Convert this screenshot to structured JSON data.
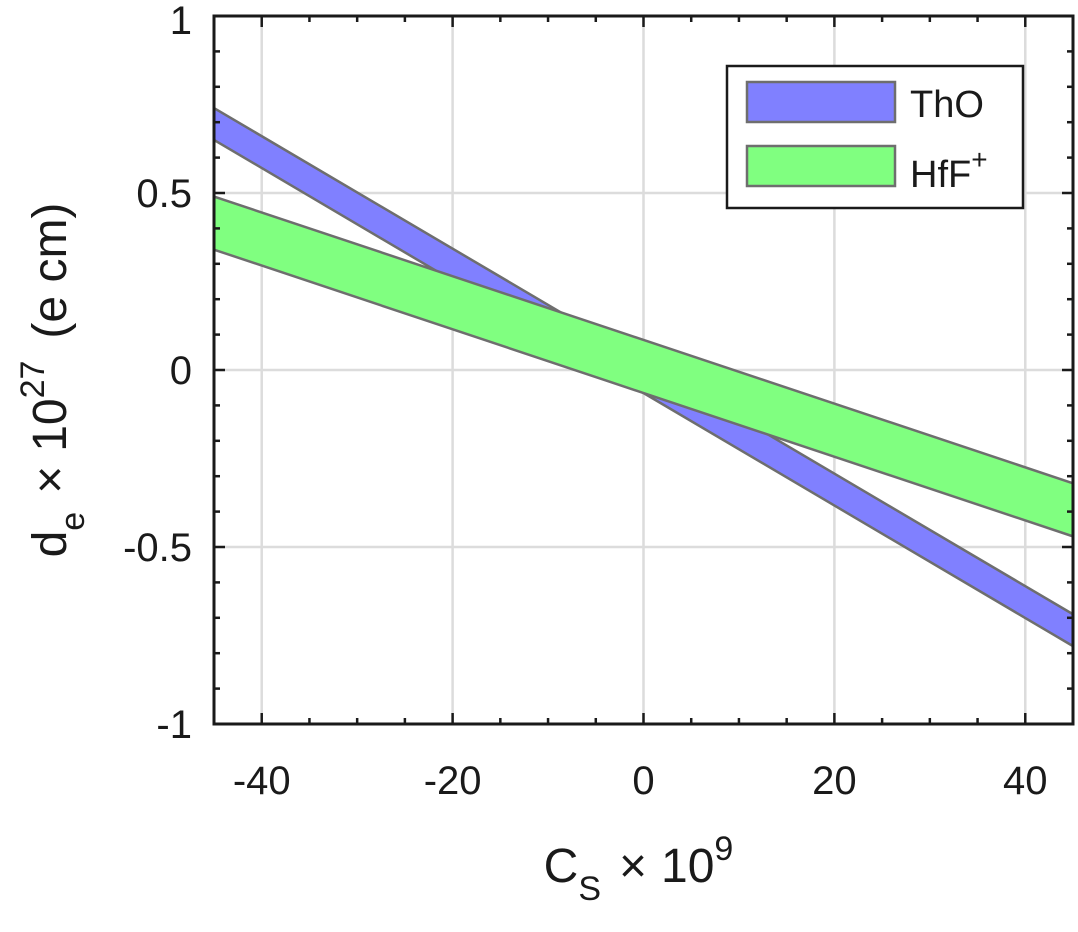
{
  "chart_data": {
    "type": "area",
    "xlim": [
      -45,
      45
    ],
    "ylim": [
      -1,
      1
    ],
    "x_major_ticks": [
      -40,
      -20,
      0,
      20,
      40
    ],
    "x_minor_ticks": [
      -35,
      -30,
      -25,
      -15,
      -10,
      -5,
      5,
      10,
      15,
      25,
      30,
      35
    ],
    "x_tick_labels": [
      "-40",
      "-20",
      "0",
      "20",
      "40"
    ],
    "y_major_ticks": [
      -1,
      -0.5,
      0,
      0.5,
      1
    ],
    "y_minor_ticks": [
      -0.9,
      -0.8,
      -0.7,
      -0.6,
      -0.4,
      -0.3,
      -0.2,
      -0.1,
      0.1,
      0.2,
      0.3,
      0.4,
      0.6,
      0.7,
      0.8,
      0.9
    ],
    "y_tick_labels": [
      "-1",
      "-0.5",
      "0",
      "0.5",
      "1"
    ],
    "xlabel": {
      "main": "C",
      "sub": "S",
      "times": "×",
      "base": "10",
      "exp": "9"
    },
    "ylabel": {
      "main": "d",
      "sub": "e",
      "times": "×",
      "base": "10",
      "exp": "27",
      "unit": "(e cm)"
    },
    "grid": true,
    "legend_position": "top-right",
    "series": [
      {
        "name": "ThO",
        "color": "#8080ff",
        "edge_color": "#6e6e6e",
        "x": [
          -45,
          45
        ],
        "upper": [
          0.74,
          -0.69
        ],
        "lower": [
          0.65,
          -0.78
        ]
      },
      {
        "name": "HfF",
        "name_sup": "+",
        "color": "#80ff80",
        "edge_color": "#6e6e6e",
        "x": [
          -45,
          45
        ],
        "upper": [
          0.49,
          -0.32
        ],
        "lower": [
          0.34,
          -0.47
        ]
      }
    ]
  }
}
